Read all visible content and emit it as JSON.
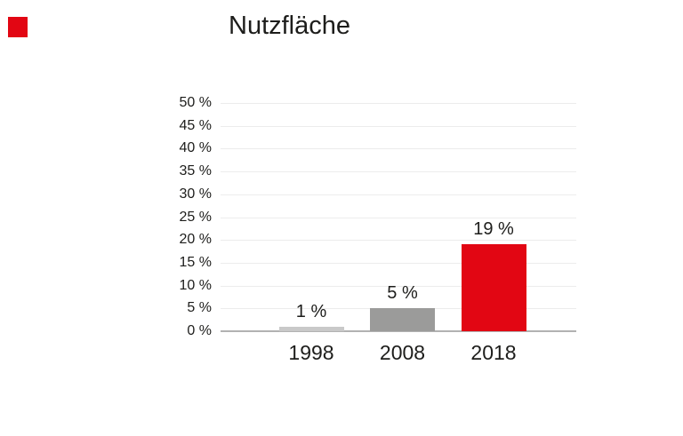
{
  "logo": {
    "color": "#e20613"
  },
  "chart_data": {
    "type": "bar",
    "title": "Nutzfläche",
    "categories": [
      "1998",
      "2008",
      "2018"
    ],
    "values": [
      1,
      5,
      19
    ],
    "value_labels": [
      "1 %",
      "5 %",
      "19 %"
    ],
    "bar_colors": [
      "#c9c9c9",
      "#9b9b9a",
      "#e20613"
    ],
    "xlabel": "",
    "ylabel": "",
    "ylim": [
      0,
      50
    ],
    "ytick_step": 5,
    "ytick_labels": [
      "0 %",
      "5 %",
      "10 %",
      "15 %",
      "20 %",
      "25 %",
      "30 %",
      "35 %",
      "40 %",
      "45 %",
      "50 %"
    ],
    "grid": "horizontal",
    "legend": "none",
    "colors": {
      "text": "#1d1d1b",
      "grid": "#ececec",
      "axis": "#b2b2b2"
    }
  }
}
